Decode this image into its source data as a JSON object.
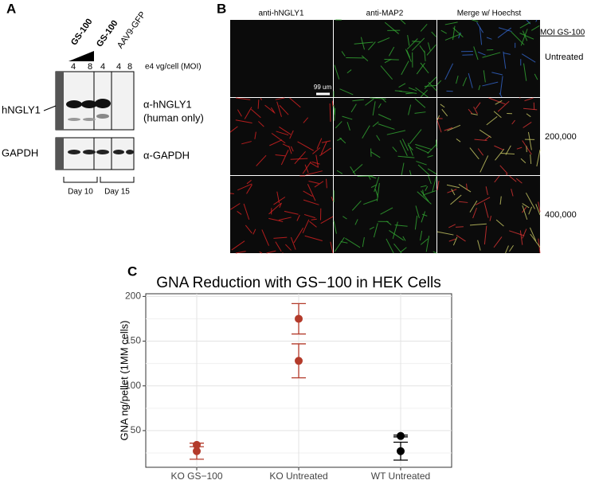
{
  "panel_a": {
    "label": "A",
    "treatment_labels": [
      "GS-100",
      "GS-100",
      "AAV9-GFP"
    ],
    "moi_label": "e4 vg/cell (MOI)",
    "lanes": [
      "4",
      "8",
      "4",
      "4",
      "8"
    ],
    "protein_labels": [
      "hNGLY1",
      "GAPDH"
    ],
    "antibody_labels": [
      "α-hNGLY1",
      "(human only)",
      "α-GAPDH"
    ],
    "day_labels": [
      "Day 10",
      "Day 15"
    ]
  },
  "panel_b": {
    "label": "B",
    "columns": [
      "anti-hNGLY1",
      "anti-MAP2",
      "Merge w/ Hoechst"
    ],
    "moi_header": "MOI GS-100",
    "rows": [
      "Untreated",
      "200,000",
      "400,000"
    ],
    "scale_bar": "99 um"
  },
  "panel_c_label": "C",
  "chart_data": {
    "type": "dot-errorbar",
    "title": "GNA Reduction with GS−100 in HEK Cells",
    "y_label": "GNA ng/pellet (1MM cells)",
    "categories": [
      "KO GS−100",
      "KO Untreated",
      "WT Untreated"
    ],
    "values": [
      [
        34,
        27
      ],
      [
        175,
        128
      ],
      [
        44,
        27
      ]
    ],
    "errors": [
      [
        2,
        9
      ],
      [
        17,
        19
      ],
      [
        1,
        10
      ]
    ],
    "colors": [
      "#b33a2a",
      "#b33a2a",
      "#000000"
    ],
    "ylim": [
      9,
      203
    ],
    "yticks": [
      50,
      100,
      150,
      200
    ],
    "minor_yticks": [
      25,
      75,
      125,
      175
    ],
    "grid": true
  }
}
